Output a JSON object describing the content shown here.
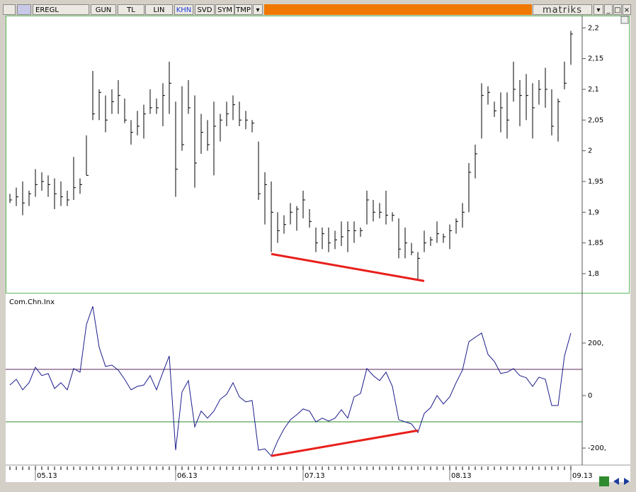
{
  "toolbar": {
    "symbol": "EREGL",
    "buttons": [
      "GUN",
      "TL",
      "LIN",
      "KHN",
      "SVD",
      "SYM",
      "TMP"
    ],
    "brand": "matriks"
  },
  "chart_data": [
    {
      "type": "ohlc",
      "categories": [
        null,
        null,
        null,
        null,
        "05.13",
        null,
        null,
        null,
        null,
        null,
        null,
        null,
        null,
        null,
        null,
        null,
        null,
        null,
        null,
        null,
        null,
        null,
        null,
        null,
        null,
        null,
        "06.13",
        null,
        null,
        null,
        null,
        null,
        null,
        null,
        null,
        null,
        null,
        null,
        null,
        null,
        null,
        null,
        null,
        null,
        null,
        null,
        "07.13",
        null,
        null,
        null,
        null,
        null,
        null,
        null,
        null,
        null,
        null,
        null,
        null,
        null,
        null,
        null,
        null,
        null,
        null,
        null,
        null,
        null,
        null,
        "08.13",
        null,
        null,
        null,
        null,
        null,
        null,
        null,
        null,
        null,
        null,
        null,
        null,
        null,
        null,
        null,
        null,
        null,
        null,
        "09.13"
      ],
      "high": [
        1.93,
        1.94,
        1.95,
        1.935,
        1.97,
        1.965,
        1.96,
        1.955,
        1.95,
        1.935,
        1.99,
        1.955,
        2.025,
        2.13,
        2.1,
        2.09,
        2.1,
        2.115,
        2.085,
        2.05,
        2.065,
        2.075,
        2.1,
        2.085,
        2.11,
        2.145,
        2.08,
        2.105,
        2.115,
        2.09,
        2.06,
        2.05,
        2.08,
        2.06,
        2.08,
        2.09,
        2.08,
        2.065,
        2.05,
        2.015,
        1.965,
        1.95,
        1.9,
        1.895,
        1.915,
        1.91,
        1.935,
        1.905,
        1.875,
        1.875,
        1.875,
        1.87,
        1.885,
        1.885,
        1.885,
        1.875,
        1.935,
        1.92,
        1.915,
        1.935,
        1.9,
        1.89,
        1.875,
        1.85,
        1.835,
        1.87,
        1.86,
        1.885,
        1.865,
        1.88,
        1.89,
        1.915,
        1.98,
        2.01,
        2.11,
        2.105,
        2.08,
        2.095,
        2.095,
        2.145,
        2.115,
        2.125,
        2.11,
        2.115,
        2.135,
        2.1,
        2.085,
        2.145,
        2.195
      ],
      "low": [
        1.915,
        1.91,
        1.895,
        1.91,
        1.925,
        1.935,
        1.925,
        1.905,
        1.91,
        1.91,
        1.92,
        1.93,
        1.96,
        2.05,
        2.05,
        2.03,
        2.06,
        2.06,
        2.045,
        2.01,
        2.025,
        2.02,
        2.06,
        2.06,
        2.04,
        2.06,
        1.925,
        2.0,
        2.06,
        1.94,
        1.995,
        2.0,
        1.96,
        2.015,
        2.04,
        2.05,
        2.04,
        2.035,
        2.03,
        1.92,
        1.88,
        1.835,
        1.85,
        1.865,
        1.88,
        1.87,
        1.89,
        1.875,
        1.835,
        1.84,
        1.835,
        1.84,
        1.845,
        1.835,
        1.85,
        1.86,
        1.88,
        1.885,
        1.89,
        1.88,
        1.885,
        1.825,
        1.825,
        1.83,
        1.79,
        1.835,
        1.845,
        1.85,
        1.85,
        1.84,
        1.865,
        1.875,
        1.9,
        1.955,
        2.02,
        2.075,
        2.055,
        2.03,
        2.02,
        2.08,
        2.04,
        2.05,
        2.02,
        2.075,
        2.07,
        2.025,
        2.015,
        2.1,
        2.14
      ],
      "close": [
        1.92,
        1.925,
        1.915,
        1.93,
        1.945,
        1.95,
        1.945,
        1.93,
        1.925,
        1.92,
        1.94,
        1.945,
        1.96,
        2.06,
        2.095,
        2.05,
        2.08,
        2.09,
        2.05,
        2.03,
        2.04,
        2.06,
        2.07,
        2.07,
        2.09,
        2.11,
        1.97,
        2.01,
        2.07,
        1.98,
        2.03,
        2.01,
        2.04,
        2.05,
        2.06,
        2.075,
        2.05,
        2.05,
        2.045,
        1.93,
        1.945,
        1.9,
        1.87,
        1.88,
        1.9,
        1.905,
        1.92,
        1.885,
        1.85,
        1.865,
        1.85,
        1.855,
        1.86,
        1.87,
        1.87,
        1.87,
        1.92,
        1.9,
        1.9,
        1.895,
        1.895,
        1.84,
        1.85,
        1.835,
        1.825,
        1.85,
        1.855,
        1.865,
        1.86,
        1.87,
        1.885,
        1.9,
        1.965,
        1.995,
        2.09,
        2.095,
        2.065,
        2.07,
        2.05,
        2.1,
        2.09,
        2.09,
        2.07,
        2.1,
        2.1,
        2.04,
        2.08,
        2.11,
        2.19
      ],
      "color": "#000000",
      "ylim": [
        1.77,
        2.22
      ],
      "yticks": [
        {
          "value": 1.8,
          "label": "1,8"
        },
        {
          "value": 1.85,
          "label": "1,85"
        },
        {
          "value": 1.9,
          "label": "1,9"
        },
        {
          "value": 1.95,
          "label": "1,95"
        },
        2,
        {
          "value": 2.05,
          "label": "2,05"
        },
        {
          "value": 2.1,
          "label": "2,1"
        },
        {
          "value": 2.15,
          "label": "2,15"
        },
        {
          "value": 2.2,
          "label": "2,2"
        }
      ],
      "trendline": {
        "x": [
          41,
          65
        ],
        "y": [
          1.832,
          1.788
        ],
        "color": "#e8201c"
      }
    },
    {
      "type": "line",
      "title": "Com.Chn.Inx",
      "series": [
        {
          "name": "Com.Chn.Inx",
          "color": "#1c1c8c",
          "values": [
            40,
            62,
            22,
            49,
            108,
            76,
            84,
            27,
            49,
            22,
            103,
            89,
            270,
            340,
            184,
            111,
            116,
            97,
            62,
            22,
            35,
            40,
            76,
            22,
            89,
            151,
            -208,
            14,
            57,
            -119,
            -59,
            -86,
            -59,
            -14,
            5,
            49,
            -5,
            -24,
            -19,
            -208,
            -203,
            -230,
            -173,
            -127,
            -92,
            -73,
            -51,
            -59,
            -100,
            -86,
            -97,
            -86,
            -54,
            -86,
            -5,
            8,
            103,
            76,
            57,
            89,
            35,
            -92,
            -100,
            -108,
            -141,
            -68,
            -46,
            0,
            -32,
            -5,
            49,
            97,
            205,
            222,
            238,
            157,
            130,
            84,
            89,
            103,
            76,
            68,
            35,
            70,
            62,
            -38,
            -38,
            151,
            238
          ]
        }
      ],
      "ylim": [
        -262,
        378
      ],
      "yticks": [
        {
          "value": -200,
          "label": "-200,"
        },
        0,
        {
          "value": 200,
          "label": "200,"
        }
      ],
      "hlines": [
        {
          "value": 100,
          "color": "#5a2a5a"
        },
        {
          "value": -100,
          "color": "#2e8b2e"
        }
      ],
      "trendline": {
        "x": [
          41,
          64
        ],
        "y": [
          -230,
          -133
        ],
        "color": "#e8201c"
      }
    }
  ]
}
